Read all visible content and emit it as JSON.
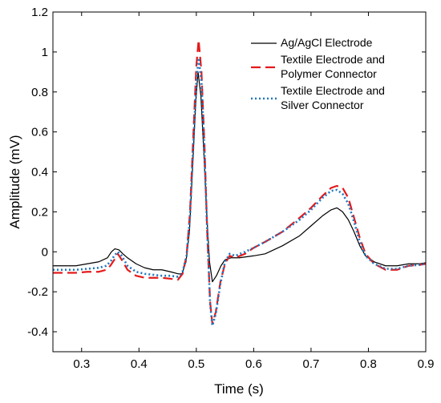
{
  "chart_data": {
    "type": "line",
    "xlabel": "Time (s)",
    "ylabel": "Amplitude (mV)",
    "xlim": [
      0.25,
      0.9
    ],
    "ylim": [
      -0.5,
      1.2
    ],
    "xticks": [
      "0.3",
      "0.4",
      "0.5",
      "0.6",
      "0.7",
      "0.8",
      "0.9"
    ],
    "yticks": [
      "-0.4",
      "-0.2",
      "0",
      "0.2",
      "0.4",
      "0.6",
      "0.8",
      "1",
      "1.2"
    ],
    "grid": false,
    "legend_position": "top-right",
    "series": [
      {
        "name": "Ag/AgCl Electrode",
        "color": "#000000",
        "style": "solid",
        "points": [
          [
            0.25,
            -0.07
          ],
          [
            0.27,
            -0.07
          ],
          [
            0.29,
            -0.07
          ],
          [
            0.31,
            -0.06
          ],
          [
            0.33,
            -0.05
          ],
          [
            0.345,
            -0.03
          ],
          [
            0.352,
            0.0
          ],
          [
            0.358,
            0.015
          ],
          [
            0.365,
            0.01
          ],
          [
            0.372,
            -0.01
          ],
          [
            0.38,
            -0.03
          ],
          [
            0.395,
            -0.06
          ],
          [
            0.41,
            -0.08
          ],
          [
            0.425,
            -0.09
          ],
          [
            0.44,
            -0.09
          ],
          [
            0.455,
            -0.1
          ],
          [
            0.468,
            -0.11
          ],
          [
            0.475,
            -0.11
          ],
          [
            0.482,
            -0.05
          ],
          [
            0.488,
            0.1
          ],
          [
            0.494,
            0.45
          ],
          [
            0.499,
            0.75
          ],
          [
            0.503,
            0.9
          ],
          [
            0.508,
            0.78
          ],
          [
            0.513,
            0.5
          ],
          [
            0.518,
            0.2
          ],
          [
            0.523,
            -0.05
          ],
          [
            0.528,
            -0.15
          ],
          [
            0.535,
            -0.12
          ],
          [
            0.543,
            -0.07
          ],
          [
            0.55,
            -0.04
          ],
          [
            0.56,
            -0.03
          ],
          [
            0.575,
            -0.03
          ],
          [
            0.6,
            -0.02
          ],
          [
            0.62,
            -0.01
          ],
          [
            0.65,
            0.03
          ],
          [
            0.68,
            0.08
          ],
          [
            0.7,
            0.13
          ],
          [
            0.72,
            0.18
          ],
          [
            0.735,
            0.21
          ],
          [
            0.745,
            0.22
          ],
          [
            0.755,
            0.2
          ],
          [
            0.765,
            0.16
          ],
          [
            0.775,
            0.1
          ],
          [
            0.785,
            0.03
          ],
          [
            0.795,
            -0.02
          ],
          [
            0.81,
            -0.05
          ],
          [
            0.83,
            -0.07
          ],
          [
            0.85,
            -0.07
          ],
          [
            0.87,
            -0.06
          ],
          [
            0.89,
            -0.06
          ],
          [
            0.9,
            -0.055
          ]
        ]
      },
      {
        "name": "Textile Electrode and Polymer Connector",
        "color": "#e41a1c",
        "style": "dashed",
        "points": [
          [
            0.25,
            -0.105
          ],
          [
            0.27,
            -0.105
          ],
          [
            0.29,
            -0.105
          ],
          [
            0.31,
            -0.1
          ],
          [
            0.33,
            -0.1
          ],
          [
            0.343,
            -0.09
          ],
          [
            0.35,
            -0.07
          ],
          [
            0.357,
            -0.04
          ],
          [
            0.363,
            -0.01
          ],
          [
            0.37,
            -0.04
          ],
          [
            0.38,
            -0.09
          ],
          [
            0.395,
            -0.12
          ],
          [
            0.41,
            -0.13
          ],
          [
            0.425,
            -0.13
          ],
          [
            0.44,
            -0.13
          ],
          [
            0.455,
            -0.135
          ],
          [
            0.468,
            -0.14
          ],
          [
            0.476,
            -0.11
          ],
          [
            0.483,
            -0.02
          ],
          [
            0.489,
            0.2
          ],
          [
            0.495,
            0.6
          ],
          [
            0.5,
            0.93
          ],
          [
            0.504,
            1.06
          ],
          [
            0.509,
            0.9
          ],
          [
            0.514,
            0.55
          ],
          [
            0.519,
            0.1
          ],
          [
            0.524,
            -0.25
          ],
          [
            0.528,
            -0.36
          ],
          [
            0.534,
            -0.3
          ],
          [
            0.542,
            -0.15
          ],
          [
            0.55,
            -0.06
          ],
          [
            0.558,
            -0.02
          ],
          [
            0.568,
            -0.03
          ],
          [
            0.585,
            -0.01
          ],
          [
            0.6,
            0.02
          ],
          [
            0.62,
            0.05
          ],
          [
            0.65,
            0.1
          ],
          [
            0.68,
            0.17
          ],
          [
            0.7,
            0.22
          ],
          [
            0.72,
            0.28
          ],
          [
            0.735,
            0.32
          ],
          [
            0.745,
            0.33
          ],
          [
            0.755,
            0.32
          ],
          [
            0.765,
            0.27
          ],
          [
            0.775,
            0.17
          ],
          [
            0.785,
            0.07
          ],
          [
            0.795,
            -0.01
          ],
          [
            0.81,
            -0.06
          ],
          [
            0.83,
            -0.09
          ],
          [
            0.85,
            -0.09
          ],
          [
            0.87,
            -0.07
          ],
          [
            0.89,
            -0.065
          ],
          [
            0.9,
            -0.06
          ]
        ]
      },
      {
        "name": "Textile Electrode and Silver Connector",
        "color": "#1f77c0",
        "style": "dotted",
        "points": [
          [
            0.25,
            -0.09
          ],
          [
            0.27,
            -0.09
          ],
          [
            0.29,
            -0.09
          ],
          [
            0.31,
            -0.085
          ],
          [
            0.33,
            -0.08
          ],
          [
            0.343,
            -0.07
          ],
          [
            0.35,
            -0.05
          ],
          [
            0.357,
            -0.02
          ],
          [
            0.363,
            0.0
          ],
          [
            0.37,
            -0.02
          ],
          [
            0.38,
            -0.07
          ],
          [
            0.395,
            -0.1
          ],
          [
            0.41,
            -0.11
          ],
          [
            0.425,
            -0.115
          ],
          [
            0.44,
            -0.12
          ],
          [
            0.455,
            -0.12
          ],
          [
            0.468,
            -0.125
          ],
          [
            0.476,
            -0.1
          ],
          [
            0.483,
            -0.02
          ],
          [
            0.489,
            0.18
          ],
          [
            0.495,
            0.55
          ],
          [
            0.5,
            0.85
          ],
          [
            0.504,
            0.97
          ],
          [
            0.509,
            0.85
          ],
          [
            0.514,
            0.52
          ],
          [
            0.519,
            0.1
          ],
          [
            0.524,
            -0.26
          ],
          [
            0.528,
            -0.37
          ],
          [
            0.534,
            -0.31
          ],
          [
            0.542,
            -0.16
          ],
          [
            0.55,
            -0.05
          ],
          [
            0.558,
            -0.01
          ],
          [
            0.568,
            -0.02
          ],
          [
            0.585,
            0.0
          ],
          [
            0.6,
            0.02
          ],
          [
            0.62,
            0.05
          ],
          [
            0.65,
            0.1
          ],
          [
            0.68,
            0.16
          ],
          [
            0.7,
            0.21
          ],
          [
            0.72,
            0.27
          ],
          [
            0.735,
            0.305
          ],
          [
            0.745,
            0.31
          ],
          [
            0.755,
            0.29
          ],
          [
            0.765,
            0.24
          ],
          [
            0.775,
            0.15
          ],
          [
            0.785,
            0.05
          ],
          [
            0.795,
            -0.02
          ],
          [
            0.81,
            -0.06
          ],
          [
            0.83,
            -0.085
          ],
          [
            0.85,
            -0.085
          ],
          [
            0.87,
            -0.07
          ],
          [
            0.89,
            -0.065
          ],
          [
            0.9,
            -0.06
          ]
        ]
      }
    ]
  }
}
